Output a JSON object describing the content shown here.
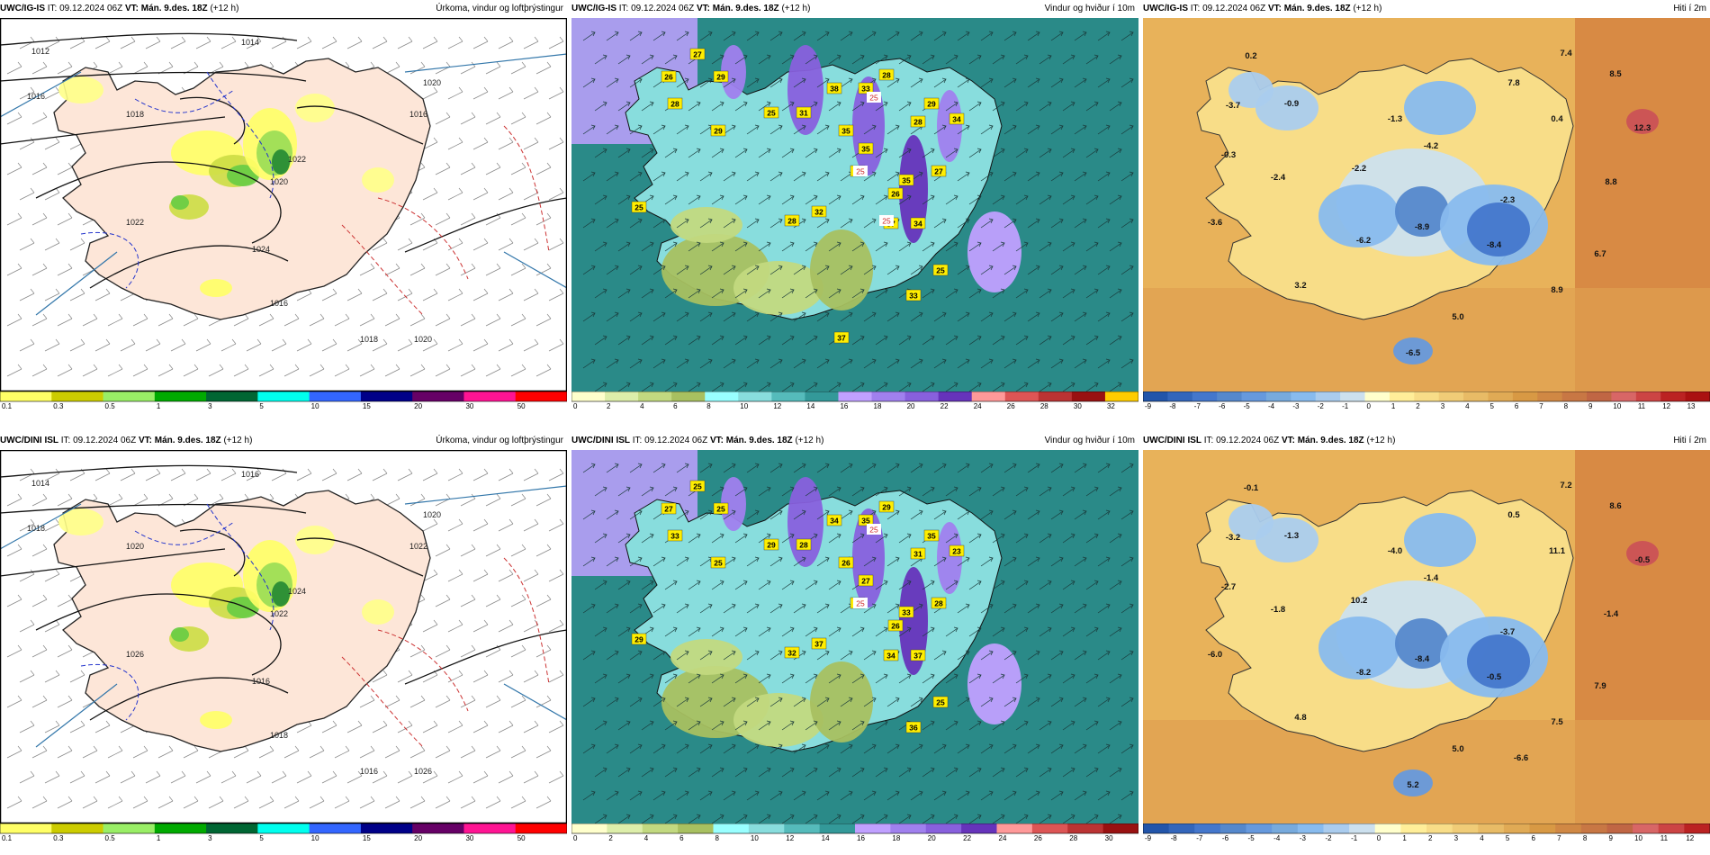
{
  "panels": [
    {
      "src": "UWC/IG-IS",
      "it": "IT: 09.12.2024 06Z",
      "vt_label": "VT:",
      "vt": "Mán. 9.des. 18Z",
      "lead": "(+12 h)",
      "title": "Úrkoma, vindur og loftþrýstingur",
      "type": "precip",
      "isobars": [
        "1012",
        "1014",
        "1016",
        "1018",
        "1020",
        "1022",
        "1022",
        "1024",
        "1016",
        "1020",
        "1016",
        "1018",
        "1020"
      ],
      "colorbar": {
        "colors": [
          "#ffff66",
          "#cccc00",
          "#99ee66",
          "#00aa00",
          "#006633",
          "#00ffee",
          "#3366ff",
          "#000088",
          "#660066",
          "#ff1493",
          "#ff0000"
        ],
        "ticks": [
          "0.1",
          "0.3",
          "0.5",
          "1",
          "3",
          "5",
          "10",
          "15",
          "20",
          "30",
          "50"
        ]
      }
    },
    {
      "src": "UWC/IG-IS",
      "it": "IT: 09.12.2024 06Z",
      "vt_label": "VT:",
      "vt": "Mán. 9.des. 18Z",
      "lead": "(+12 h)",
      "title": "Vindur og hviður í 10m",
      "type": "wind",
      "gusts": [
        "27",
        "26",
        "29",
        "28",
        "29",
        "25",
        "31",
        "38",
        "33",
        "28",
        "29",
        "34",
        "35",
        "28",
        "35",
        "25",
        "27",
        "35",
        "26",
        "25",
        "28",
        "32",
        "37",
        "34",
        "25",
        "33",
        "37"
      ],
      "white_labels": [
        "25",
        "25",
        "25"
      ],
      "colorbar": {
        "colors": [
          "#ffffcc",
          "#ddeeaa",
          "#c2d980",
          "#a8c060",
          "#99ffff",
          "#88dddd",
          "#55bbbb",
          "#339999",
          "#c0a0ff",
          "#a080ee",
          "#8860dd",
          "#6633bb",
          "#ff9999",
          "#dd5555",
          "#bb3333",
          "#991111",
          "#ffcc00"
        ],
        "ticks": [
          "0",
          "2",
          "4",
          "6",
          "8",
          "10",
          "12",
          "14",
          "16",
          "18",
          "20",
          "22",
          "24",
          "26",
          "28",
          "30",
          "32"
        ]
      }
    },
    {
      "src": "UWC/IG-IS",
      "it": "IT: 09.12.2024 06Z",
      "vt_label": "VT:",
      "vt": "Mán. 9.des. 18Z",
      "lead": "(+12 h)",
      "title": "Hiti í 2m",
      "type": "temp",
      "temps": [
        "0.2",
        "7.4",
        "8.5",
        "-3.7",
        "-0.9",
        "7.8",
        "-1.3",
        "0.4",
        "12.3",
        "-0.3",
        "-4.2",
        "-2.2",
        "-2.4",
        "8.8",
        "-2.3",
        "-3.6",
        "-6.2",
        "-8.9",
        "-8.4",
        "6.7",
        "3.2",
        "8.9",
        "5.0",
        "-6.5"
      ],
      "colorbar": {
        "colors": [
          "#2255aa",
          "#3366bb",
          "#4477cc",
          "#5588cc",
          "#6699dd",
          "#77aadd",
          "#88bbee",
          "#aaccee",
          "#cce0ee",
          "#ffffcc",
          "#ffee99",
          "#f8dd88",
          "#f0cc77",
          "#e8bb66",
          "#e0aa55",
          "#d89944",
          "#d08844",
          "#c87744",
          "#c06644",
          "#d86666",
          "#cc4444",
          "#bb2222",
          "#aa1111"
        ],
        "ticks": [
          "-9",
          "-8",
          "-7",
          "-6",
          "-5",
          "-4",
          "-3",
          "-2",
          "-1",
          "0",
          "1",
          "2",
          "3",
          "4",
          "5",
          "6",
          "7",
          "8",
          "9",
          "10",
          "11",
          "12",
          "13"
        ]
      }
    },
    {
      "src": "UWC/DINI ISL",
      "it": "IT: 09.12.2024 06Z",
      "vt_label": "VT:",
      "vt": "Mán. 9.des. 18Z",
      "lead": "(+12 h)",
      "title": "Úrkoma, vindur og loftþrýstingur",
      "type": "precip",
      "isobars": [
        "1014",
        "1016",
        "1018",
        "1020",
        "1022",
        "1024",
        "1026",
        "1016",
        "1018",
        "1020",
        "1022",
        "1016",
        "1026"
      ],
      "colorbar": {
        "colors": [
          "#ffff66",
          "#cccc00",
          "#99ee66",
          "#00aa00",
          "#006633",
          "#00ffee",
          "#3366ff",
          "#000088",
          "#660066",
          "#ff1493",
          "#ff0000"
        ],
        "ticks": [
          "0.1",
          "0.3",
          "0.5",
          "1",
          "3",
          "5",
          "10",
          "15",
          "20",
          "30",
          "50"
        ]
      }
    },
    {
      "src": "UWC/DINI ISL",
      "it": "IT: 09.12.2024 06Z",
      "vt_label": "VT:",
      "vt": "Mán. 9.des. 18Z",
      "lead": "(+12 h)",
      "title": "Vindur og hviður í 10m",
      "type": "wind",
      "gusts": [
        "25",
        "27",
        "25",
        "33",
        "25",
        "29",
        "28",
        "34",
        "35",
        "29",
        "35",
        "23",
        "26",
        "31",
        "27",
        "26",
        "28",
        "33",
        "26",
        "29",
        "32",
        "37",
        "34",
        "37",
        "25",
        "36"
      ],
      "white_labels": [
        "25",
        "25"
      ],
      "colorbar": {
        "colors": [
          "#ffffcc",
          "#ddeeaa",
          "#c2d980",
          "#a8c060",
          "#99ffff",
          "#88dddd",
          "#55bbbb",
          "#339999",
          "#c0a0ff",
          "#a080ee",
          "#8860dd",
          "#6633bb",
          "#ff9999",
          "#dd5555",
          "#bb3333",
          "#991111"
        ],
        "ticks": [
          "0",
          "2",
          "4",
          "6",
          "8",
          "10",
          "12",
          "14",
          "16",
          "18",
          "20",
          "22",
          "24",
          "26",
          "28",
          "30"
        ]
      }
    },
    {
      "src": "UWC/DINI ISL",
      "it": "IT: 09.12.2024 06Z",
      "vt_label": "VT:",
      "vt": "Mán. 9.des. 18Z",
      "lead": "(+12 h)",
      "title": "Hiti í 2m",
      "type": "temp",
      "temps": [
        "-0.1",
        "7.2",
        "8.6",
        "-3.2",
        "-1.3",
        "0.5",
        "-4.0",
        "11.1",
        "-0.5",
        "-2.7",
        "-1.4",
        "10.2",
        "-1.8",
        "-1.4",
        "-3.7",
        "-6.0",
        "-8.2",
        "-8.4",
        "-0.5",
        "7.9",
        "4.8",
        "7.5",
        "5.0",
        "5.2",
        "-6.6"
      ],
      "colorbar": {
        "colors": [
          "#2255aa",
          "#3366bb",
          "#4477cc",
          "#5588cc",
          "#6699dd",
          "#77aadd",
          "#88bbee",
          "#aaccee",
          "#cce0ee",
          "#ffffcc",
          "#ffee99",
          "#f8dd88",
          "#f0cc77",
          "#e8bb66",
          "#e0aa55",
          "#d89944",
          "#d08844",
          "#c87744",
          "#c06644",
          "#d86666",
          "#cc4444",
          "#bb2222"
        ],
        "ticks": [
          "-9",
          "-8",
          "-7",
          "-6",
          "-5",
          "-4",
          "-3",
          "-2",
          "-1",
          "0",
          "1",
          "2",
          "3",
          "4",
          "5",
          "6",
          "7",
          "8",
          "9",
          "10",
          "11",
          "12"
        ]
      }
    }
  ]
}
